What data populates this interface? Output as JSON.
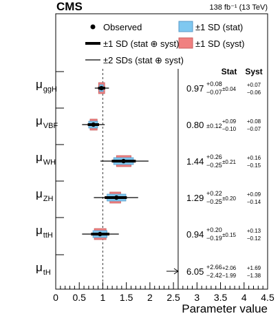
{
  "chart_data": {
    "type": "scatter",
    "experiment": "CMS",
    "luminosity": "138 fb⁻¹ (13 TeV)",
    "xlabel": "Parameter value",
    "xlim": [
      0,
      4.5
    ],
    "xticks": [
      "0",
      "0.5",
      "1",
      "1.5",
      "2",
      "2.5",
      "3",
      "3.5",
      "4",
      "4.5"
    ],
    "plot_xmax": 2.6,
    "sm_reference": 1,
    "column_headers": {
      "stat": "Stat",
      "syst": "Syst"
    },
    "legend": {
      "observed": "Observed",
      "stat_syst": "±1 SD (stat ⊕ syst)",
      "two_sd": "±2 SDs (stat ⊕ syst)",
      "stat": "±1 SD (stat)",
      "syst": "±1 SD (syst)"
    },
    "colors": {
      "stat": "#7fc8f0",
      "syst": "#f08080",
      "line": "#000000",
      "reference": "#555555"
    },
    "parameters": [
      {
        "label": "μ",
        "sub": "ggH",
        "value": 0.97,
        "value_text": "0.97",
        "tot_up": "+0.08",
        "tot_dn": "−0.07",
        "stat_sym": "±0.04",
        "syst_up": "+0.07",
        "syst_dn": "−0.06",
        "tot": [
          0.08,
          0.07
        ],
        "stat": [
          0.04,
          0.04
        ],
        "syst": [
          0.07,
          0.06
        ],
        "two_sd": [
          0.16,
          0.14
        ]
      },
      {
        "label": "μ",
        "sub": "VBF",
        "value": 0.8,
        "value_text": "0.80",
        "tot_sym": "±0.12",
        "stat_up": "+0.09",
        "stat_dn": "−0.10",
        "syst_up": "+0.08",
        "syst_dn": "−0.07",
        "tot": [
          0.12,
          0.12
        ],
        "stat": [
          0.09,
          0.1
        ],
        "syst": [
          0.08,
          0.07
        ],
        "two_sd": [
          0.24,
          0.24
        ]
      },
      {
        "label": "μ",
        "sub": "WH",
        "value": 1.44,
        "value_text": "1.44",
        "tot_up": "+0.26",
        "tot_dn": "−0.25",
        "stat_sym": "±0.21",
        "syst_up": "+0.16",
        "syst_dn": "−0.15",
        "tot": [
          0.26,
          0.25
        ],
        "stat": [
          0.21,
          0.21
        ],
        "syst": [
          0.16,
          0.15
        ],
        "two_sd": [
          0.53,
          0.49
        ]
      },
      {
        "label": "μ",
        "sub": "ZH",
        "value": 1.29,
        "value_text": "1.29",
        "tot_up": "+0.22",
        "tot_dn": "−0.25",
        "stat_sym": "±0.20",
        "syst_up": "+0.09",
        "syst_dn": "−0.14",
        "tot": [
          0.22,
          0.25
        ],
        "stat": [
          0.2,
          0.2
        ],
        "syst": [
          0.09,
          0.14
        ],
        "two_sd": [
          0.46,
          0.48
        ]
      },
      {
        "label": "μ",
        "sub": "ttH",
        "value": 0.94,
        "value_text": "0.94",
        "tot_up": "+0.20",
        "tot_dn": "−0.19",
        "stat_sym": "±0.15",
        "syst_up": "+0.13",
        "syst_dn": "−0.12",
        "tot": [
          0.2,
          0.19
        ],
        "stat": [
          0.15,
          0.15
        ],
        "syst": [
          0.13,
          0.12
        ],
        "two_sd": [
          0.4,
          0.38
        ]
      },
      {
        "label": "μ",
        "sub": "tH",
        "value": 6.05,
        "value_text": "6.05",
        "tot_up": "+2.66",
        "tot_dn": "−2.42",
        "stat_up": "+2.06",
        "stat_dn": "−1.99",
        "syst_up": "+1.69",
        "syst_dn": "−1.38",
        "off_scale": true
      }
    ]
  }
}
